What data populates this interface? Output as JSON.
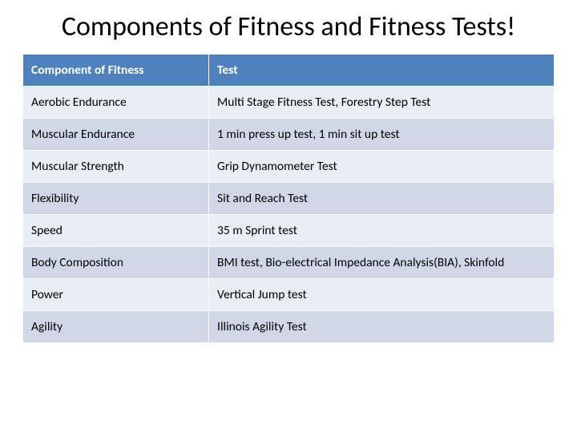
{
  "title": "Components of Fitness and Fitness Tests!",
  "table": {
    "type": "table",
    "header_bg": "#4f81bd",
    "header_fg": "#ffffff",
    "row_bg_odd": "#e9edf4",
    "row_bg_even": "#d0d8e8",
    "border_color": "#ffffff",
    "font_family": "Calibri",
    "header_fontsize": 15.5,
    "cell_fontsize": 15.5,
    "col_widths_pct": [
      35,
      65
    ],
    "columns": [
      "Component of Fitness",
      "Test"
    ],
    "rows": [
      [
        "Aerobic Endurance",
        "Multi Stage Fitness Test, Forestry Step Test"
      ],
      [
        "Muscular Endurance",
        "1 min press up test, 1 min sit up test"
      ],
      [
        "Muscular Strength",
        "Grip Dynamometer Test"
      ],
      [
        "Flexibility",
        "Sit and Reach Test"
      ],
      [
        "Speed",
        "35 m Sprint test"
      ],
      [
        "Body Composition",
        "BMI test, Bio-electrical Impedance Analysis(BIA), Skinfold"
      ],
      [
        "Power",
        "Vertical Jump test"
      ],
      [
        "Agility",
        "Illinois Agility Test"
      ]
    ]
  }
}
